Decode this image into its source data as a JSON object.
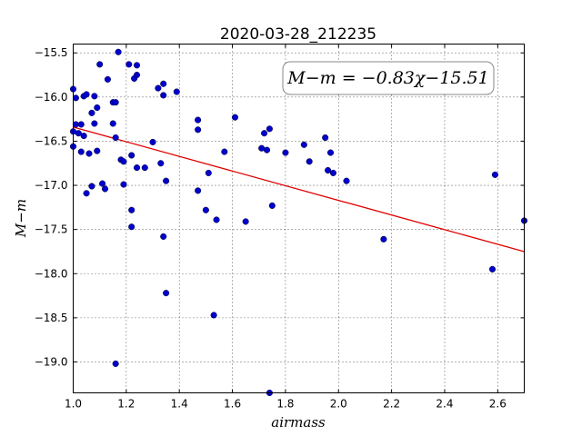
{
  "chart_data": {
    "type": "scatter",
    "title": "2020-03-28_212235",
    "xlabel": "airmass",
    "ylabel": "M−m",
    "xlim": [
      1.0,
      2.7
    ],
    "ylim": [
      -15.4,
      -19.35
    ],
    "x_ticks": [
      1.0,
      1.2,
      1.4,
      1.6,
      1.8,
      2.0,
      2.2,
      2.4,
      2.6
    ],
    "x_tick_labels": [
      "1.0",
      "1.2",
      "1.4",
      "1.6",
      "1.8",
      "2.0",
      "2.2",
      "2.4",
      "2.6"
    ],
    "y_ticks": [
      -15.5,
      -16.0,
      -16.5,
      -17.0,
      -17.5,
      -18.0,
      -18.5,
      -19.0
    ],
    "y_tick_labels": [
      "−15.5",
      "−16.0",
      "−16.5",
      "−17.0",
      "−17.5",
      "−18.0",
      "−18.5",
      "−19.0"
    ],
    "grid": true,
    "annotation": "M−m = −0.83χ−15.51",
    "fit": {
      "slope": -0.83,
      "intercept": -15.51,
      "x": [
        1.0,
        2.7
      ],
      "color": "#e00000"
    },
    "point_color": "#0000cc",
    "points": [
      [
        1.0,
        -15.91
      ],
      [
        1.01,
        -16.01
      ],
      [
        1.01,
        -16.31
      ],
      [
        1.0,
        -16.39
      ],
      [
        1.0,
        -16.56
      ],
      [
        1.02,
        -16.41
      ],
      [
        1.03,
        -16.31
      ],
      [
        1.04,
        -16.44
      ],
      [
        1.04,
        -15.99
      ],
      [
        1.05,
        -15.97
      ],
      [
        1.03,
        -16.62
      ],
      [
        1.05,
        -17.09
      ],
      [
        1.06,
        -16.64
      ],
      [
        1.07,
        -16.18
      ],
      [
        1.07,
        -17.01
      ],
      [
        1.08,
        -16.3
      ],
      [
        1.08,
        -15.99
      ],
      [
        1.09,
        -16.61
      ],
      [
        1.09,
        -16.12
      ],
      [
        1.1,
        -15.63
      ],
      [
        1.11,
        -16.98
      ],
      [
        1.12,
        -17.04
      ],
      [
        1.13,
        -15.8
      ],
      [
        1.15,
        -16.06
      ],
      [
        1.15,
        -16.3
      ],
      [
        1.16,
        -16.06
      ],
      [
        1.16,
        -16.46
      ],
      [
        1.17,
        -15.49
      ],
      [
        1.18,
        -16.71
      ],
      [
        1.19,
        -16.73
      ],
      [
        1.19,
        -16.99
      ],
      [
        1.21,
        -15.63
      ],
      [
        1.22,
        -16.66
      ],
      [
        1.22,
        -17.28
      ],
      [
        1.22,
        -17.47
      ],
      [
        1.23,
        -15.79
      ],
      [
        1.24,
        -15.64
      ],
      [
        1.24,
        -15.75
      ],
      [
        1.24,
        -16.8
      ],
      [
        1.27,
        -16.8
      ],
      [
        1.3,
        -16.51
      ],
      [
        1.32,
        -15.9
      ],
      [
        1.33,
        -16.75
      ],
      [
        1.34,
        -15.85
      ],
      [
        1.34,
        -15.98
      ],
      [
        1.34,
        -17.58
      ],
      [
        1.35,
        -16.95
      ],
      [
        1.35,
        -18.22
      ],
      [
        1.39,
        -15.94
      ],
      [
        1.47,
        -16.26
      ],
      [
        1.47,
        -16.37
      ],
      [
        1.47,
        -17.06
      ],
      [
        1.5,
        -17.28
      ],
      [
        1.51,
        -16.86
      ],
      [
        1.53,
        -18.47
      ],
      [
        1.54,
        -17.39
      ],
      [
        1.57,
        -16.62
      ],
      [
        1.61,
        -16.23
      ],
      [
        1.65,
        -17.41
      ],
      [
        1.71,
        -16.58
      ],
      [
        1.72,
        -16.41
      ],
      [
        1.73,
        -16.6
      ],
      [
        1.74,
        -16.36
      ],
      [
        1.75,
        -17.23
      ],
      [
        1.8,
        -16.63
      ],
      [
        1.87,
        -16.54
      ],
      [
        1.89,
        -16.73
      ],
      [
        1.95,
        -16.46
      ],
      [
        1.96,
        -16.83
      ],
      [
        1.97,
        -16.63
      ],
      [
        1.98,
        -16.86
      ],
      [
        2.03,
        -16.95
      ],
      [
        2.17,
        -17.61
      ],
      [
        2.58,
        -17.95
      ],
      [
        2.59,
        -16.88
      ],
      [
        2.7,
        -17.4
      ],
      [
        1.16,
        -19.02
      ],
      [
        1.74,
        -19.35
      ]
    ]
  }
}
